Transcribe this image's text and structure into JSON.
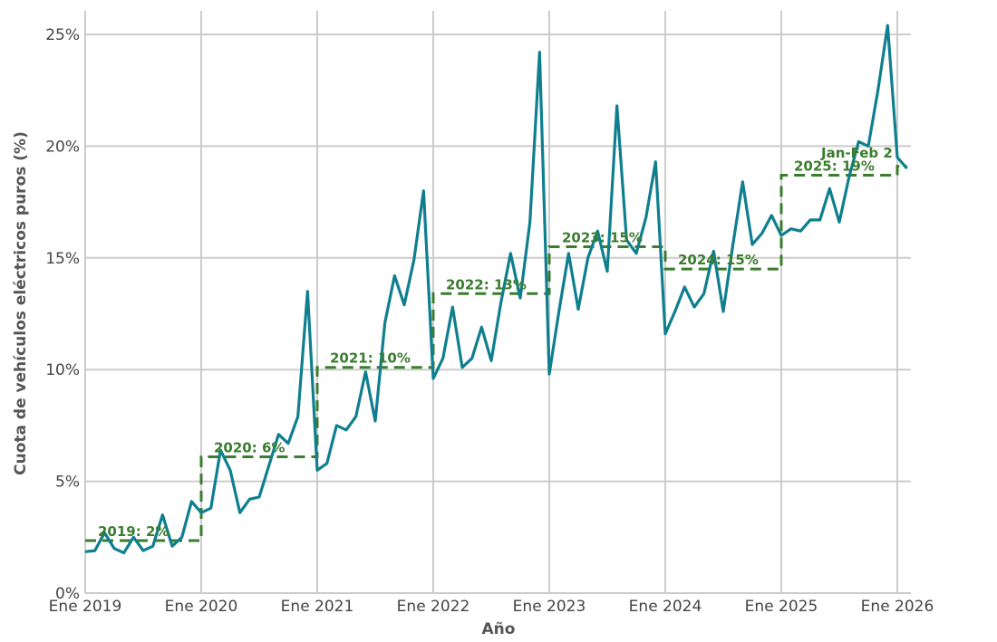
{
  "chart_data": {
    "type": "line",
    "title": "",
    "xlabel": "Año",
    "ylabel": "Cuota de vehículos eléctricos puros (%)",
    "ylim": [
      0,
      25
    ],
    "grid": true,
    "y_ticks": [
      0,
      5,
      10,
      15,
      20,
      25
    ],
    "y_tick_labels": [
      "0%",
      "5%",
      "10%",
      "15%",
      "20%",
      "25%"
    ],
    "x_ticks": [
      "2019-01",
      "2020-01",
      "2021-01",
      "2022-01",
      "2023-01",
      "2024-01",
      "2025-01",
      "2026-01"
    ],
    "x_tick_labels": [
      "Ene 2019",
      "Ene 2020",
      "Ene 2021",
      "Ene 2022",
      "Ene 2023",
      "Ene 2024",
      "Ene 2025",
      "Ene 2026"
    ],
    "colors": {
      "series": "#0f7f8f",
      "annual_average": "#3a7d2e",
      "grid": "#cccccc"
    },
    "series": [
      {
        "start": "2019-01",
        "frequency": "monthly",
        "values": [
          1.85,
          1.9,
          2.7,
          2.0,
          1.8,
          2.5,
          1.9,
          2.1,
          3.5,
          2.1,
          2.5,
          4.1,
          3.6,
          3.8,
          6.4,
          5.5,
          3.6,
          4.2,
          4.3,
          5.7,
          7.1,
          6.7,
          7.9,
          13.5,
          5.5,
          5.8,
          7.5,
          7.3,
          7.9,
          9.9,
          7.7,
          12.1,
          14.2,
          12.9,
          14.9,
          18.0,
          9.6,
          10.5,
          12.8,
          10.1,
          10.5,
          11.9,
          10.4,
          13.0,
          15.2,
          13.2,
          16.6,
          24.2,
          9.8,
          12.6,
          15.2,
          12.7,
          15.0,
          16.2,
          14.4,
          21.8,
          15.8,
          15.2,
          16.8,
          19.3,
          11.6,
          12.6,
          13.7,
          12.8,
          13.4,
          15.3,
          12.6,
          15.6,
          18.4,
          15.6,
          16.1,
          16.9,
          16.0,
          16.3,
          16.2,
          16.7,
          16.7,
          18.1,
          16.6,
          18.6,
          20.2,
          20.0,
          22.5,
          25.4,
          19.5,
          19.0
        ]
      }
    ],
    "annual_averages": [
      {
        "period": "2019",
        "start": "2019-01",
        "end": "2020-01",
        "value": 2.35,
        "label": "2019: 2%"
      },
      {
        "period": "2020",
        "start": "2020-01",
        "end": "2021-01",
        "value": 6.1,
        "label": "2020: 6%"
      },
      {
        "period": "2021",
        "start": "2021-01",
        "end": "2022-01",
        "value": 10.1,
        "label": "2021: 10%"
      },
      {
        "period": "2022",
        "start": "2022-01",
        "end": "2023-01",
        "value": 13.4,
        "label": "2022: 13%"
      },
      {
        "period": "2023",
        "start": "2023-01",
        "end": "2024-01",
        "value": 15.5,
        "label": "2023: 15%"
      },
      {
        "period": "2024",
        "start": "2024-01",
        "end": "2025-01",
        "value": 14.5,
        "label": "2024: 15%"
      },
      {
        "period": "2025",
        "start": "2025-01",
        "end": "2026-01",
        "value": 18.7,
        "label": "2025: 19%"
      },
      {
        "period": "Jan-Feb 2026",
        "start": "2026-01",
        "end": "2026-02",
        "value": 19.1,
        "label": "Jan-Feb 2"
      }
    ]
  }
}
